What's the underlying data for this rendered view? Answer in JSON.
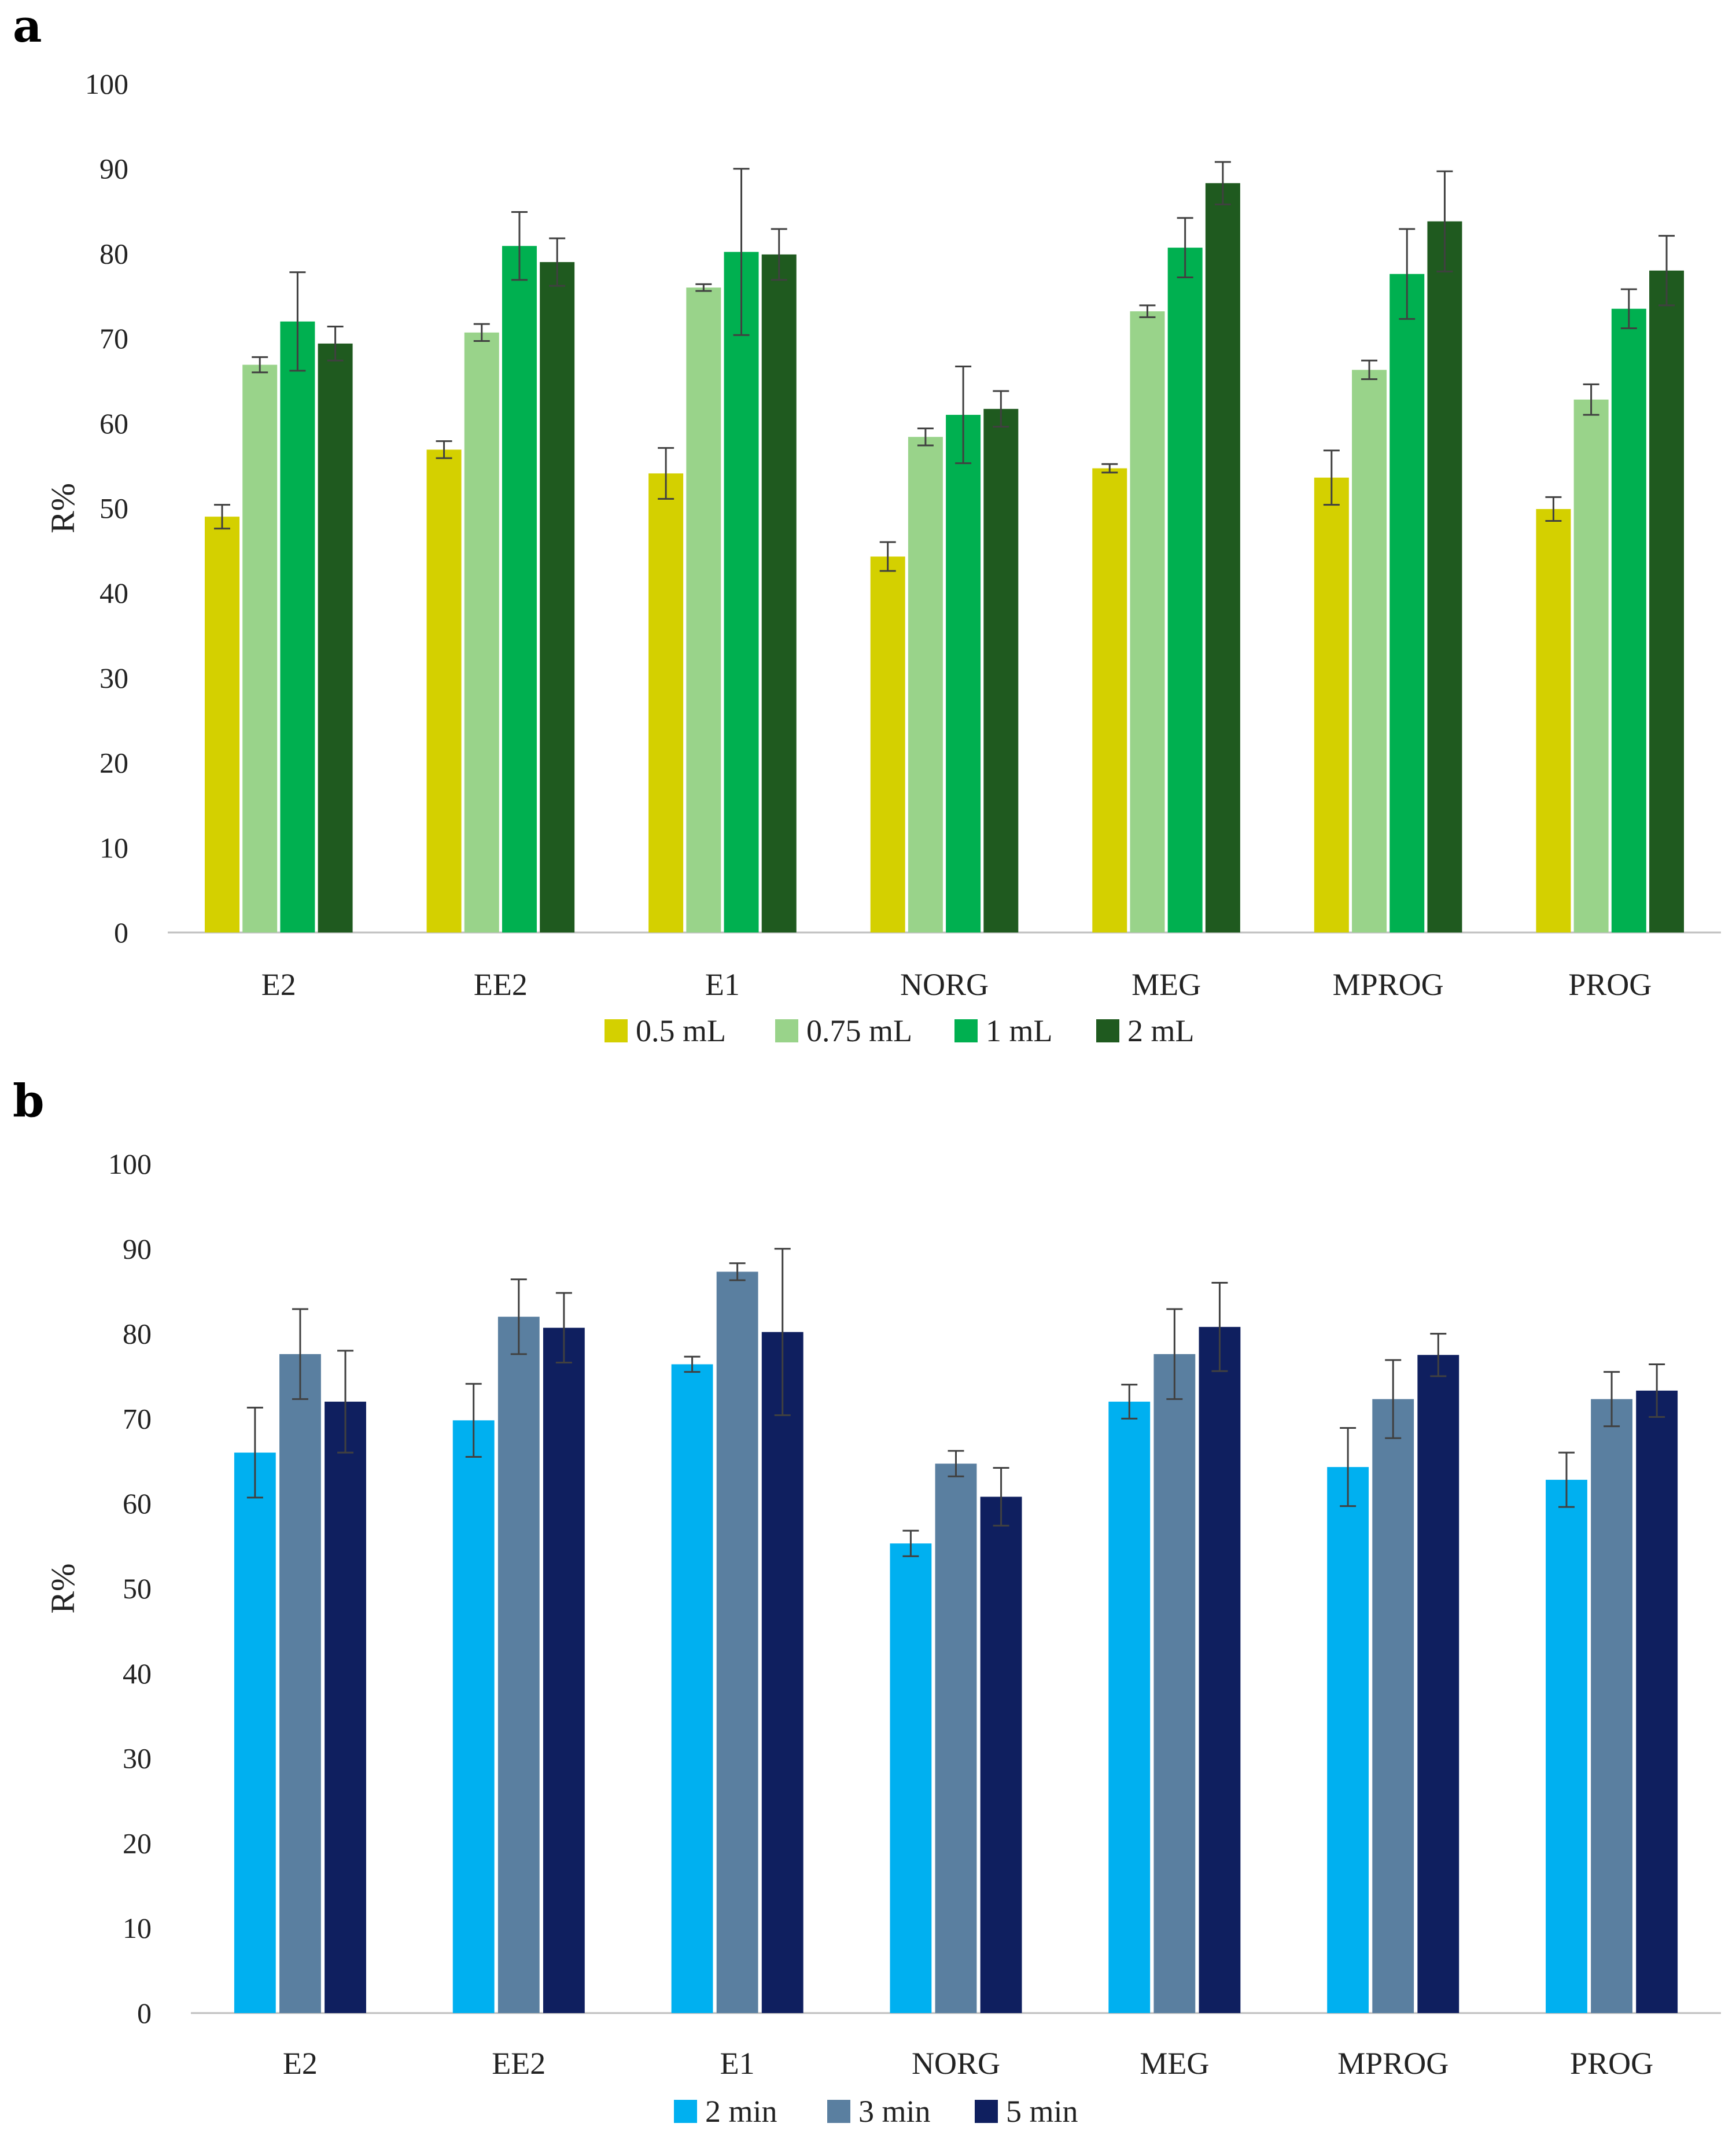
{
  "chart_data": [
    {
      "type": "bar",
      "panel_label": "a",
      "ylabel": "R%",
      "ylim": [
        0,
        100
      ],
      "yticks": [
        0,
        10,
        20,
        30,
        40,
        50,
        60,
        70,
        80,
        90,
        100
      ],
      "categories": [
        "E2",
        "EE2",
        "E1",
        "NORG",
        "MEG",
        "MPROG",
        "PROG"
      ],
      "legend_position": "bottom",
      "series": [
        {
          "name": "0.5 mL",
          "color": "#D4D000",
          "values": [
            49,
            56.9,
            54.1,
            44.3,
            54.7,
            53.6,
            49.9
          ],
          "errors": [
            1.4,
            1.0,
            3.0,
            1.7,
            0.5,
            3.2,
            1.4
          ]
        },
        {
          "name": "0.75 mL",
          "color": "#99D38A",
          "values": [
            66.9,
            70.7,
            76.0,
            58.4,
            73.2,
            66.3,
            62.8
          ],
          "errors": [
            0.9,
            1.0,
            0.4,
            1.0,
            0.7,
            1.1,
            1.8
          ]
        },
        {
          "name": "1 mL",
          "color": "#00B050",
          "values": [
            72.0,
            80.9,
            80.2,
            61.0,
            80.7,
            77.6,
            73.5
          ],
          "errors": [
            5.8,
            4.0,
            9.8,
            5.7,
            3.5,
            5.3,
            2.3
          ]
        },
        {
          "name": "2 mL",
          "color": "#1F5A1F",
          "values": [
            69.4,
            79.0,
            79.9,
            61.7,
            88.3,
            83.8,
            78.0
          ],
          "errors": [
            2.0,
            2.8,
            3.0,
            2.1,
            2.5,
            5.9,
            4.1
          ]
        }
      ]
    },
    {
      "type": "bar",
      "panel_label": "b",
      "ylabel": "R%",
      "ylim": [
        0,
        100
      ],
      "yticks": [
        0,
        10,
        20,
        30,
        40,
        50,
        60,
        70,
        80,
        90,
        100
      ],
      "categories": [
        "E2",
        "EE2",
        "E1",
        "NORG",
        "MEG",
        "MPROG",
        "PROG"
      ],
      "legend_position": "bottom",
      "series": [
        {
          "name": "2 min",
          "color": "#00B0F0",
          "values": [
            66.0,
            69.8,
            76.4,
            55.3,
            72.0,
            64.3,
            62.8
          ],
          "errors": [
            5.3,
            4.3,
            0.9,
            1.5,
            2.0,
            4.6,
            3.2
          ]
        },
        {
          "name": "3 min",
          "color": "#5A7FA0",
          "values": [
            77.6,
            82.0,
            87.3,
            64.7,
            77.6,
            72.3,
            72.3
          ],
          "errors": [
            5.3,
            4.4,
            1.0,
            1.5,
            5.3,
            4.6,
            3.2
          ]
        },
        {
          "name": "5 min",
          "color": "#0F1F5F",
          "values": [
            72.0,
            80.7,
            80.2,
            60.8,
            80.8,
            77.5,
            73.3
          ],
          "errors": [
            6.0,
            4.1,
            9.8,
            3.4,
            5.2,
            2.5,
            3.1
          ]
        }
      ]
    }
  ]
}
